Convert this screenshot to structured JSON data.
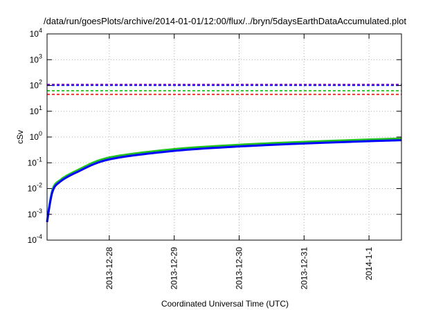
{
  "chart_data": {
    "type": "line",
    "title": "/data/run/goesPlots/archive/2014-01-01/12:00/flux/../bryn/5daysEarthDataAccumulated.plot",
    "xlabel": "Coordinated Universal Time (UTC)",
    "ylabel": "cSv",
    "yscale": "log",
    "ylim": [
      0.0001,
      10000
    ],
    "xlim": [
      "2013-12-27 01:00",
      "2014-01-01 12:00"
    ],
    "x_tick_labels": [
      "2013-12-28",
      "2013-12-29",
      "2013-12-30",
      "2013-12-31",
      "2014-1-1"
    ],
    "x_ticks": [
      "2013-12-28",
      "2013-12-29",
      "2013-12-30",
      "2013-12-31",
      "2014-01-01"
    ],
    "y_tick_labels": [
      {
        "base": "10",
        "exp": "4"
      },
      {
        "base": "10",
        "exp": "3"
      },
      {
        "base": "10",
        "exp": "2"
      },
      {
        "base": "10",
        "exp": "1"
      },
      {
        "base": "10",
        "exp": "0"
      },
      {
        "base": "10",
        "exp": "-1"
      },
      {
        "base": "10",
        "exp": "-2"
      },
      {
        "base": "10",
        "exp": "-3"
      },
      {
        "base": "10",
        "exp": "-4"
      }
    ],
    "y_ticks": [
      10000,
      1000,
      100,
      10,
      1,
      0.1,
      0.01,
      0.001,
      0.0001
    ],
    "grid": true,
    "legend": "none",
    "reference_lines": [
      {
        "y": 110,
        "color": "#8000c0",
        "style": "dashed"
      },
      {
        "y": 100,
        "color": "#0000ff",
        "style": "dashed"
      },
      {
        "y": 62,
        "color": "#00c000",
        "style": "dashed"
      },
      {
        "y": 45,
        "color": "#ff0000",
        "style": "dashed"
      }
    ],
    "series": [
      {
        "color": "#20c020",
        "x": [
          "2013-12-27 01:00",
          "2013-12-27 03:00",
          "2013-12-27 06:00",
          "2013-12-27 12:00",
          "2013-12-28 00:00",
          "2013-12-29 00:00",
          "2013-12-30 00:00",
          "2013-12-31 00:00",
          "2014-01-01 00:00",
          "2014-01-01 12:00"
        ],
        "y": [
          0.00055,
          0.009,
          0.022,
          0.05,
          0.16,
          0.34,
          0.5,
          0.65,
          0.8,
          0.88
        ]
      },
      {
        "color": "#0000ff",
        "x": [
          "2013-12-27 01:00",
          "2013-12-27 03:00",
          "2013-12-27 06:00",
          "2013-12-27 12:00",
          "2013-12-28 00:00",
          "2013-12-29 00:00",
          "2013-12-30 00:00",
          "2013-12-31 00:00",
          "2014-01-01 00:00",
          "2014-01-01 12:00"
        ],
        "y": [
          0.0005,
          0.0075,
          0.019,
          0.043,
          0.135,
          0.29,
          0.43,
          0.56,
          0.69,
          0.75
        ]
      }
    ]
  }
}
